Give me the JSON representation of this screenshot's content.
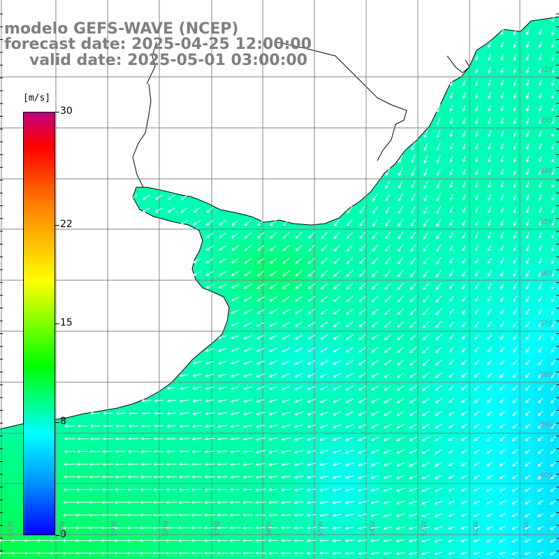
{
  "title": {
    "model": "modelo GEFS-WAVE (NCEP)",
    "forecast": "forecast date: 2025-04-25 12:00:00",
    "valid": "valid date: 2025-05-01 03:00:00"
  },
  "colorbar": {
    "unit": "[m/s]",
    "ticks": [
      "30",
      "22",
      "15",
      "8",
      "0"
    ],
    "tick_values": [
      30,
      22,
      15,
      8,
      0
    ],
    "range": [
      0,
      30
    ],
    "colors": [
      "#0000ff",
      "#0090ff",
      "#00ffff",
      "#00ff00",
      "#ffff00",
      "#ff8000",
      "#ff0000",
      "#c00080"
    ]
  },
  "axes": {
    "lat_labels": [
      "32S",
      "33S",
      "34S",
      "35S",
      "36S",
      "37S",
      "38S",
      "39S",
      "40S"
    ],
    "lon_labels": [
      "61W",
      "60W",
      "59W",
      "58W",
      "57W",
      "56W",
      "55W",
      "54W",
      "53W",
      "52W",
      "51W"
    ],
    "grid": true
  },
  "map": {
    "land_color": "#ffffff",
    "coast_color": "#000000",
    "grid_color": "#808080",
    "vector_color": "#ffffff",
    "field": "wind speed with direction arrows, predominantly from the northeast/north, 8–14 m/s"
  }
}
